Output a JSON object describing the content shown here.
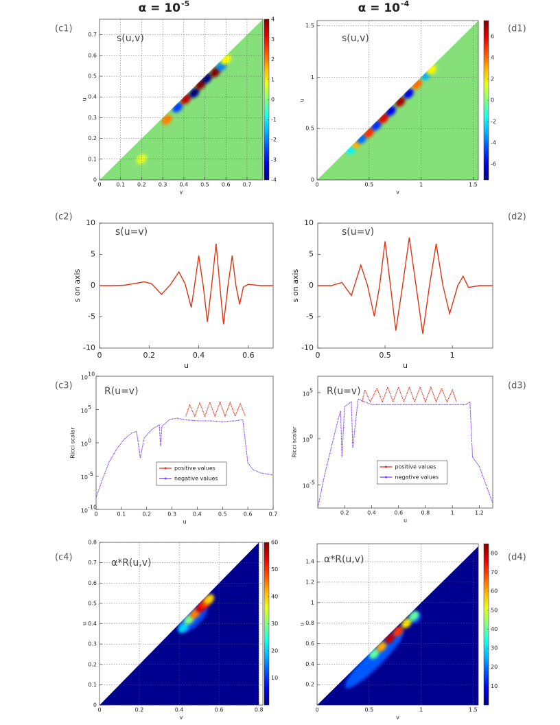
{
  "chart_data": [
    {
      "type": "map",
      "title": "α = 10",
      "title_exponent": "-5",
      "label": "(c1)",
      "annotation": "s(u,v)",
      "xlabel": "v",
      "ylabel": "u",
      "xlim": [
        0,
        0.775
      ],
      "ylim": [
        0,
        0.775
      ],
      "xticks": [
        0,
        0.1,
        0.2,
        0.3,
        0.4,
        0.5,
        0.6,
        0.7
      ],
      "yticks": [
        0,
        0.1,
        0.2,
        0.3,
        0.4,
        0.5,
        0.6,
        0.7
      ],
      "grid": true,
      "background": "#86e07a",
      "clim": [
        -4,
        4
      ],
      "cticks": [
        -4,
        -3,
        -2,
        -1,
        0,
        1,
        2,
        3,
        4
      ],
      "points": {
        "x": [
          0.2,
          0.32,
          0.37,
          0.41,
          0.45,
          0.48,
          0.51,
          0.55,
          0.58,
          0.6
        ],
        "y": [
          0.1,
          0.29,
          0.35,
          0.39,
          0.42,
          0.46,
          0.49,
          0.52,
          0.55,
          0.58
        ],
        "values": [
          0.8,
          2,
          -2.5,
          3.5,
          -4,
          4,
          -4,
          4,
          -2,
          1
        ]
      }
    },
    {
      "type": "map",
      "title": "α = 10",
      "title_exponent": "-4",
      "label": "(d1)",
      "annotation": "s(u,v)",
      "xlabel": "v",
      "ylabel": "u",
      "xlim": [
        0,
        1.55
      ],
      "ylim": [
        0,
        1.55
      ],
      "xticks": [
        0,
        0.5,
        1,
        1.5
      ],
      "yticks": [
        0,
        0.5,
        1,
        1.5
      ],
      "grid": true,
      "background": "#86e07a",
      "clim": [
        -7.5,
        7.5
      ],
      "cticks": [
        -6,
        -4,
        -2,
        0,
        2,
        4,
        6
      ],
      "points": {
        "x": [
          0.33,
          0.38,
          0.43,
          0.5,
          0.57,
          0.64,
          0.71,
          0.8,
          0.88,
          0.96,
          1.05,
          1.1
        ],
        "y": [
          0.3,
          0.35,
          0.4,
          0.46,
          0.53,
          0.6,
          0.67,
          0.76,
          0.84,
          0.93,
          1.02,
          1.07
        ],
        "values": [
          -2,
          3,
          -4,
          5,
          -5,
          6,
          -6,
          7,
          -6,
          4,
          -3,
          2
        ]
      }
    },
    {
      "type": "line",
      "label": "(c2)",
      "annotation": "s(u=v)",
      "xlabel": "u",
      "ylabel": "s on axis",
      "xlim": [
        0,
        0.7
      ],
      "ylim": [
        -10,
        10
      ],
      "xticks": [
        0,
        0.2,
        0.4,
        0.6
      ],
      "yticks": [
        -10,
        -5,
        0,
        5,
        10
      ],
      "grid": false,
      "x": [
        0,
        0.05,
        0.1,
        0.15,
        0.18,
        0.21,
        0.25,
        0.285,
        0.32,
        0.345,
        0.37,
        0.385,
        0.4,
        0.418,
        0.435,
        0.452,
        0.47,
        0.485,
        0.5,
        0.518,
        0.535,
        0.55,
        0.565,
        0.58,
        0.6,
        0.65,
        0.7
      ],
      "series": [
        {
          "color": "#dd3311",
          "values": [
            0,
            0,
            0.05,
            0.4,
            0.6,
            0.3,
            -1.4,
            0.1,
            2.2,
            0.3,
            -3.5,
            0.5,
            4.8,
            0,
            -5.8,
            0,
            6.7,
            0,
            -6.2,
            0,
            4.8,
            0,
            -3,
            -0.2,
            0.2,
            0,
            0
          ]
        }
      ]
    },
    {
      "type": "line",
      "label": "(d2)",
      "annotation": "s(u=v)",
      "xlabel": "u",
      "ylabel": "s on axis",
      "xlim": [
        0,
        1.3
      ],
      "ylim": [
        -10,
        10
      ],
      "xticks": [
        0,
        0.5,
        1
      ],
      "yticks": [
        -10,
        -5,
        0,
        5,
        10
      ],
      "grid": false,
      "x": [
        0,
        0.1,
        0.18,
        0.25,
        0.32,
        0.37,
        0.42,
        0.46,
        0.5,
        0.54,
        0.58,
        0.63,
        0.68,
        0.73,
        0.78,
        0.83,
        0.88,
        0.93,
        0.98,
        1.04,
        1.08,
        1.12,
        1.2,
        1.3
      ],
      "series": [
        {
          "color": "#dd3311",
          "values": [
            0,
            0,
            0.5,
            -1.6,
            3.3,
            0,
            -4.9,
            0,
            7.1,
            0,
            -7.2,
            0,
            7.7,
            0,
            -7.7,
            0,
            6.7,
            0,
            -4.5,
            0,
            1.5,
            -0.3,
            0,
            0
          ]
        }
      ]
    },
    {
      "type": "logline",
      "label": "(c3)",
      "annotation": "R(u=v)",
      "xlabel": "u",
      "ylabel": "Ricci scalar",
      "xlim": [
        0,
        0.7
      ],
      "ylim": [
        1e-10,
        10000000000.0
      ],
      "yscale": "log",
      "grid": false,
      "legend": "lower center",
      "xticks": [
        0,
        0.1,
        0.2,
        0.3,
        0.4,
        0.5,
        0.6,
        0.7
      ],
      "yticks": [
        {
          "value": 1e-10,
          "label": "10",
          "sup": "-10"
        },
        {
          "value": 1e-05,
          "label": "10",
          "sup": "-5"
        },
        {
          "value": 1,
          "label": "10",
          "sup": "0"
        },
        {
          "value": 100000.0,
          "label": "10",
          "sup": "5"
        },
        {
          "value": 10000000000.0,
          "label": "10",
          "sup": "10"
        }
      ],
      "series": [
        {
          "name": "positive values",
          "color": "#e02a10",
          "x": [
            0.355,
            0.37,
            0.39,
            0.41,
            0.43,
            0.45,
            0.47,
            0.49,
            0.51,
            0.53,
            0.55,
            0.57,
            0.59
          ],
          "values": [
            10000,
            500000,
            10000,
            1000000,
            10000,
            1200000,
            10000,
            1300000,
            10000,
            1200000,
            10000,
            800000,
            10000
          ]
        },
        {
          "name": "negative values",
          "color": "#7a3cf0",
          "x": [
            0,
            0.02,
            0.05,
            0.08,
            0.11,
            0.14,
            0.16,
            0.175,
            0.19,
            0.22,
            0.25,
            0.255,
            0.26,
            0.29,
            0.32,
            0.35,
            0.4,
            0.45,
            0.5,
            0.55,
            0.58,
            0.6,
            0.62,
            0.65,
            0.7
          ],
          "values": [
            6e-09,
            1e-06,
            0.001,
            0.1,
            3,
            30,
            50,
            0.005,
            5,
            100,
            500,
            0.3,
            300,
            3000,
            5000,
            3000,
            2000,
            2000,
            1500,
            2000,
            3000,
            0.001,
            0.0001,
            3e-05,
            1.5e-05
          ]
        }
      ]
    },
    {
      "type": "logline",
      "label": "(d3)",
      "annotation": "R(u=v)",
      "xlabel": "u",
      "ylabel": "Ricci scalar",
      "xlim": [
        0,
        1.3
      ],
      "ylim": [
        3e-08,
        6000000.0
      ],
      "yscale": "log",
      "grid": false,
      "legend": "lower center",
      "xticks": [
        0.2,
        0.4,
        0.6,
        0.8,
        1,
        1.2
      ],
      "yticks": [
        {
          "value": 1e-05,
          "label": "10",
          "sup": "-5"
        },
        {
          "value": 1,
          "label": "10",
          "sup": "0"
        },
        {
          "value": 100000.0,
          "label": "10",
          "sup": "5"
        }
      ],
      "series": [
        {
          "name": "positive values",
          "color": "#e02a10",
          "x": [
            0.33,
            0.35,
            0.39,
            0.44,
            0.48,
            0.52,
            0.56,
            0.6,
            0.64,
            0.68,
            0.72,
            0.76,
            0.8,
            0.84,
            0.88,
            0.92,
            0.96,
            1,
            1.03
          ],
          "values": [
            10000,
            200000,
            10000,
            300000,
            10000,
            400000,
            10000,
            400000,
            10000,
            400000,
            10000,
            400000,
            10000,
            400000,
            10000,
            300000,
            10000,
            200000,
            10000
          ]
        },
        {
          "name": "negative values",
          "color": "#7a3cf0",
          "x": [
            0,
            0.05,
            0.1,
            0.15,
            0.17,
            0.18,
            0.2,
            0.25,
            0.26,
            0.3,
            0.4,
            0.6,
            0.8,
            1,
            1.1,
            1.13,
            1.15,
            1.2,
            1.25,
            1.3
          ],
          "values": [
            3e-08,
            0.0001,
            0.1,
            100,
            1000,
            0.01,
            3000,
            10000,
            0.1,
            20000,
            5000,
            5000,
            5000,
            5000,
            5000,
            10000,
            0.01,
            0.001,
            1e-05,
            1e-07
          ]
        }
      ]
    },
    {
      "type": "map",
      "label": "(c4)",
      "annotation": "α*R(u,v)",
      "xlabel": "v",
      "ylabel": "u",
      "xlim": [
        0,
        0.82
      ],
      "ylim": [
        0,
        0.8
      ],
      "xticks": [
        0,
        0.2,
        0.4,
        0.6,
        0.8
      ],
      "yticks": [
        0,
        0.1,
        0.2,
        0.3,
        0.4,
        0.5,
        0.6,
        0.7,
        0.8
      ],
      "grid": true,
      "background": "#00008f",
      "clim": [
        0,
        60
      ],
      "cticks": [
        10,
        20,
        30,
        40,
        50,
        60
      ],
      "points": {
        "x": [
          0.47,
          0.42,
          0.45,
          0.48,
          0.51,
          0.53,
          0.55
        ],
        "y": [
          0.43,
          0.38,
          0.42,
          0.45,
          0.48,
          0.5,
          0.52
        ],
        "values": [
          12,
          20,
          30,
          45,
          55,
          50,
          40
        ]
      }
    },
    {
      "type": "map",
      "label": "(d4)",
      "annotation": "α*R(u,v)",
      "xlabel": "v",
      "ylabel": "u",
      "xlim": [
        0,
        1.55
      ],
      "ylim": [
        0,
        1.575
      ],
      "xticks": [
        0,
        0.5,
        1,
        1.5
      ],
      "yticks": [
        0.2,
        0.4,
        0.6,
        0.8,
        1,
        1.2,
        1.4
      ],
      "grid": true,
      "background": "#00008f",
      "clim": [
        0,
        85
      ],
      "cticks": [
        10,
        20,
        30,
        40,
        50,
        60,
        70,
        80
      ],
      "points": {
        "x": [
          0.55,
          0.75,
          0.95,
          0.55,
          0.62,
          0.7,
          0.78,
          0.86,
          0.93
        ],
        "y": [
          0.45,
          0.65,
          0.85,
          0.5,
          0.57,
          0.65,
          0.72,
          0.8,
          0.87
        ],
        "values": [
          18,
          18,
          18,
          40,
          60,
          80,
          70,
          55,
          40
        ]
      }
    }
  ]
}
